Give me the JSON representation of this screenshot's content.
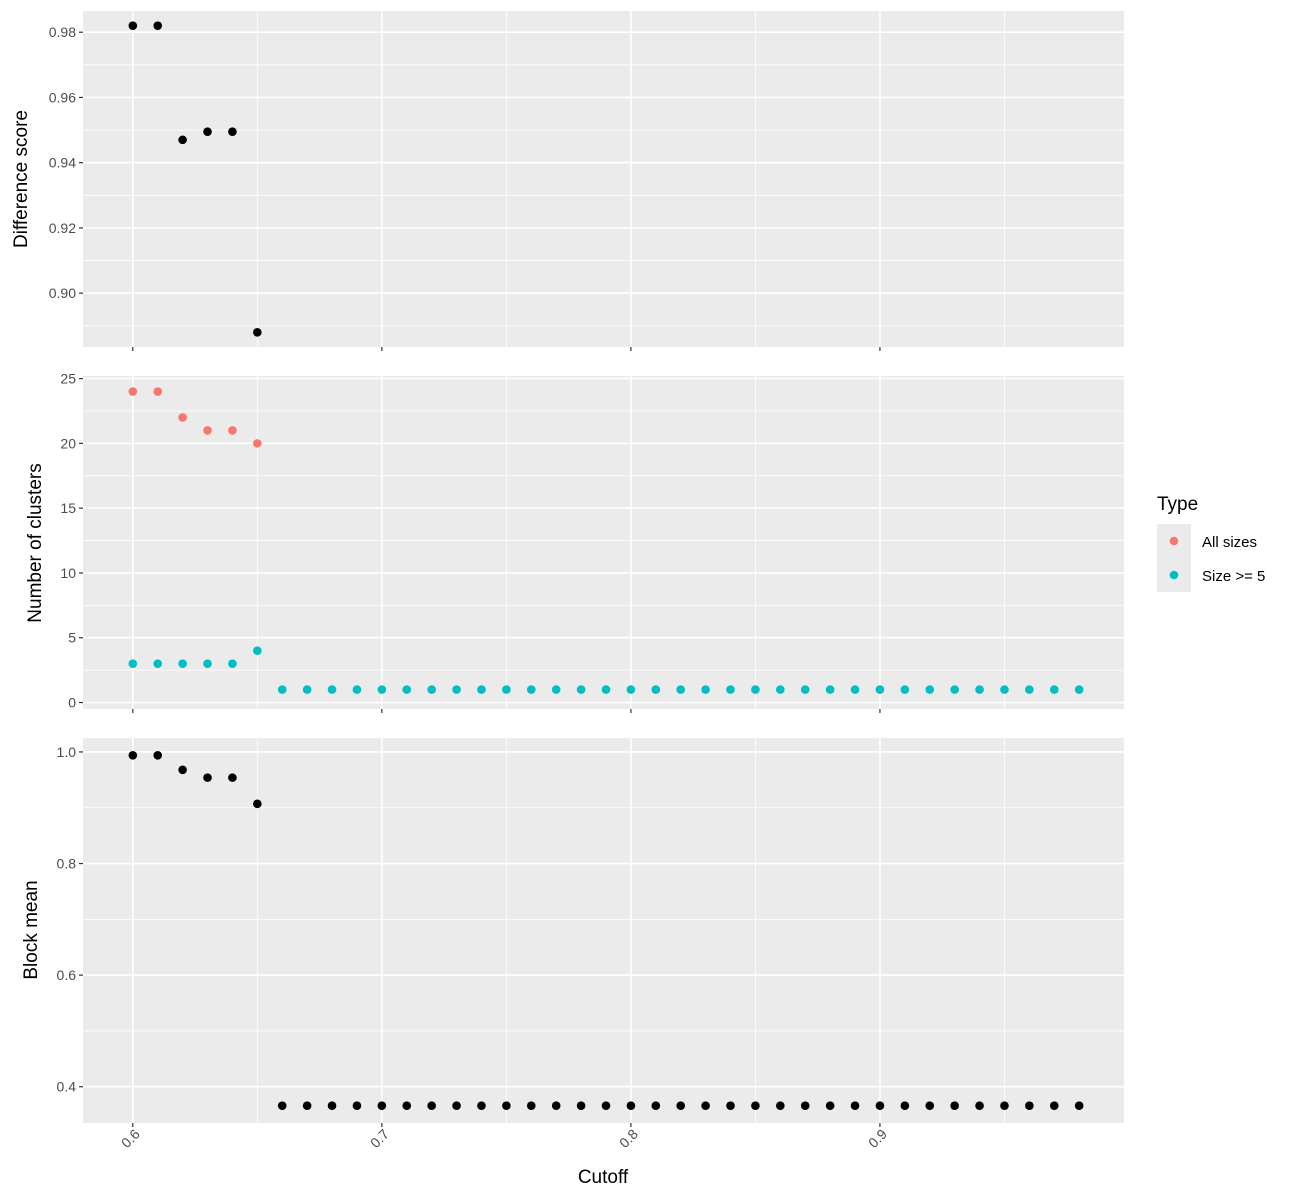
{
  "chart_data": {
    "type": "scatter",
    "x_axis": {
      "title": "Cutoff",
      "ticks": [
        0.6,
        0.7,
        0.8,
        0.9
      ],
      "tick_labels": [
        "0.6",
        "0.7",
        "0.8",
        "0.9"
      ],
      "range": [
        0.58,
        0.998
      ]
    },
    "panels": [
      {
        "ylabel": "Difference score",
        "ylim": [
          0.8835,
          0.9865
        ],
        "y_ticks": [
          0.9,
          0.92,
          0.94,
          0.96,
          0.98
        ],
        "y_tick_labels": [
          "0.90",
          "0.92",
          "0.94",
          "0.96",
          "0.98"
        ],
        "series": [
          {
            "color": "#000000",
            "points": [
              [
                0.6,
                0.982
              ],
              [
                0.61,
                0.982
              ],
              [
                0.62,
                0.947
              ],
              [
                0.63,
                0.9495
              ],
              [
                0.64,
                0.9495
              ],
              [
                0.65,
                0.888
              ]
            ]
          }
        ]
      },
      {
        "ylabel": "Number of clusters",
        "ylim": [
          -0.5,
          25.2
        ],
        "y_ticks": [
          0,
          5,
          10,
          15,
          20,
          25
        ],
        "y_tick_labels": [
          "0",
          "5",
          "10",
          "15",
          "20",
          "25"
        ],
        "series": [
          {
            "name": "All sizes",
            "color": "#F8766D",
            "points": [
              [
                0.6,
                24
              ],
              [
                0.61,
                24
              ],
              [
                0.62,
                22
              ],
              [
                0.63,
                21
              ],
              [
                0.64,
                21
              ],
              [
                0.65,
                20
              ]
            ]
          },
          {
            "name": "Size >= 5",
            "color": "#00BFC4",
            "points": [
              [
                0.6,
                3
              ],
              [
                0.61,
                3
              ],
              [
                0.62,
                3
              ],
              [
                0.63,
                3
              ],
              [
                0.64,
                3
              ],
              [
                0.65,
                4
              ],
              [
                0.66,
                1
              ],
              [
                0.67,
                1
              ],
              [
                0.68,
                1
              ],
              [
                0.69,
                1
              ],
              [
                0.7,
                1
              ],
              [
                0.71,
                1
              ],
              [
                0.72,
                1
              ],
              [
                0.73,
                1
              ],
              [
                0.74,
                1
              ],
              [
                0.75,
                1
              ],
              [
                0.76,
                1
              ],
              [
                0.77,
                1
              ],
              [
                0.78,
                1
              ],
              [
                0.79,
                1
              ],
              [
                0.8,
                1
              ],
              [
                0.81,
                1
              ],
              [
                0.82,
                1
              ],
              [
                0.83,
                1
              ],
              [
                0.84,
                1
              ],
              [
                0.85,
                1
              ],
              [
                0.86,
                1
              ],
              [
                0.87,
                1
              ],
              [
                0.88,
                1
              ],
              [
                0.89,
                1
              ],
              [
                0.9,
                1
              ],
              [
                0.91,
                1
              ],
              [
                0.92,
                1
              ],
              [
                0.93,
                1
              ],
              [
                0.94,
                1
              ],
              [
                0.95,
                1
              ],
              [
                0.96,
                1
              ],
              [
                0.97,
                1
              ],
              [
                0.98,
                1
              ]
            ]
          }
        ]
      },
      {
        "ylabel": "Block mean",
        "ylim": [
          0.335,
          1.025
        ],
        "y_ticks": [
          0.4,
          0.6,
          0.8,
          1.0
        ],
        "y_tick_labels": [
          "0.4",
          "0.6",
          "0.8",
          "1.0"
        ],
        "series": [
          {
            "color": "#000000",
            "points": [
              [
                0.6,
                0.994
              ],
              [
                0.61,
                0.994
              ],
              [
                0.62,
                0.968
              ],
              [
                0.63,
                0.954
              ],
              [
                0.64,
                0.954
              ],
              [
                0.65,
                0.907
              ],
              [
                0.66,
                0.366
              ],
              [
                0.67,
                0.366
              ],
              [
                0.68,
                0.366
              ],
              [
                0.69,
                0.366
              ],
              [
                0.7,
                0.366
              ],
              [
                0.71,
                0.366
              ],
              [
                0.72,
                0.366
              ],
              [
                0.73,
                0.366
              ],
              [
                0.74,
                0.366
              ],
              [
                0.75,
                0.366
              ],
              [
                0.76,
                0.366
              ],
              [
                0.77,
                0.366
              ],
              [
                0.78,
                0.366
              ],
              [
                0.79,
                0.366
              ],
              [
                0.8,
                0.366
              ],
              [
                0.81,
                0.366
              ],
              [
                0.82,
                0.366
              ],
              [
                0.83,
                0.366
              ],
              [
                0.84,
                0.366
              ],
              [
                0.85,
                0.366
              ],
              [
                0.86,
                0.366
              ],
              [
                0.87,
                0.366
              ],
              [
                0.88,
                0.366
              ],
              [
                0.89,
                0.366
              ],
              [
                0.9,
                0.366
              ],
              [
                0.91,
                0.366
              ],
              [
                0.92,
                0.366
              ],
              [
                0.93,
                0.366
              ],
              [
                0.94,
                0.366
              ],
              [
                0.95,
                0.366
              ],
              [
                0.96,
                0.366
              ],
              [
                0.97,
                0.366
              ],
              [
                0.98,
                0.366
              ]
            ]
          }
        ]
      }
    ],
    "legend": {
      "title": "Type",
      "position": "right",
      "items": [
        {
          "label": "All sizes",
          "color": "#F8766D"
        },
        {
          "label": "Size >= 5",
          "color": "#00BFC4"
        }
      ]
    },
    "grid": true,
    "panel_background": "#EBEBEB",
    "grid_color": "#FFFFFF"
  }
}
